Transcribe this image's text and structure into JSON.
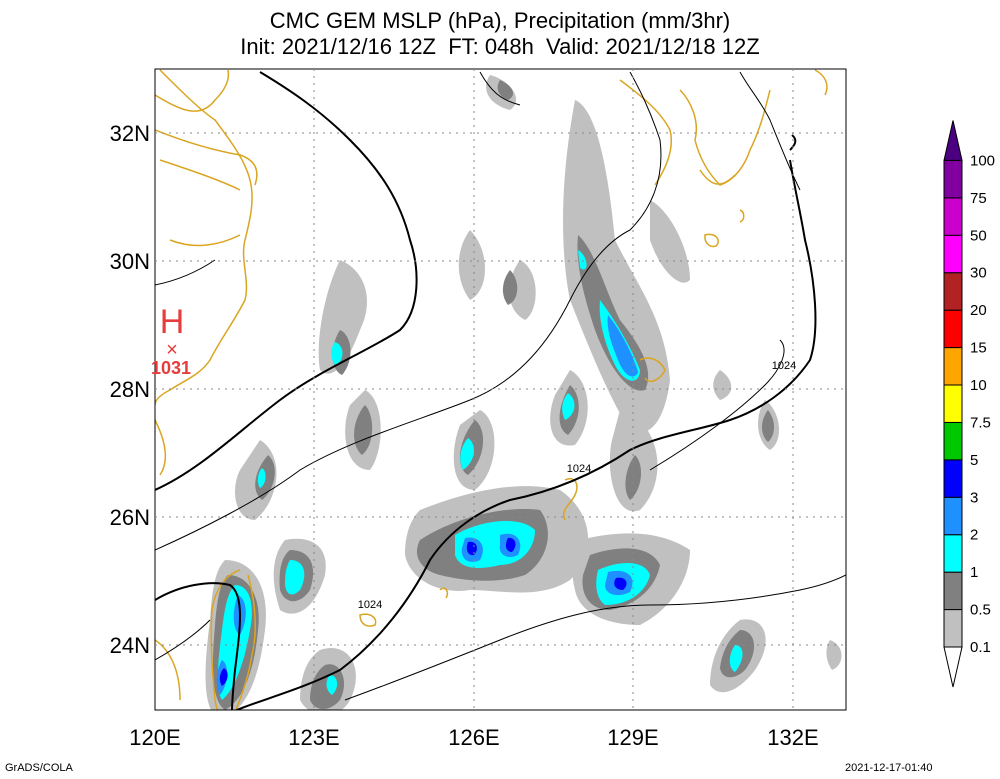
{
  "title": {
    "line1": "CMC GEM MSLP (hPa), Precipitation (mm/3hr)",
    "line2": "Init: 2021/12/16 12Z  FT: 048h  Valid: 2021/12/18 12Z"
  },
  "axes": {
    "lon_ticks": [
      "120E",
      "123E",
      "126E",
      "129E",
      "132E"
    ],
    "lat_ticks": [
      "32N",
      "30N",
      "28N",
      "26N",
      "24N"
    ],
    "lon_range": [
      120,
      133
    ],
    "lat_range": [
      23,
      33
    ]
  },
  "pressure_center": {
    "letter": "H",
    "marker": "×",
    "value": "1031"
  },
  "contour_labels": [
    "1024",
    "1024",
    "1024"
  ],
  "colorbar": {
    "levels": [
      "0.1",
      "0.5",
      "1",
      "2",
      "3",
      "5",
      "7.5",
      "10",
      "15",
      "20",
      "30",
      "50",
      "75",
      "100"
    ],
    "colors": [
      "#c0c0c0",
      "#808080",
      "#00ffff",
      "#1e90ff",
      "#0000ff",
      "#00c800",
      "#ffff00",
      "#ffa500",
      "#ff0000",
      "#b22222",
      "#ff00ff",
      "#cc00cc",
      "#8000a0",
      "#4b0082"
    ]
  },
  "footer": {
    "left": "GrADS/COLA",
    "right": "2021-12-17-01:40"
  }
}
